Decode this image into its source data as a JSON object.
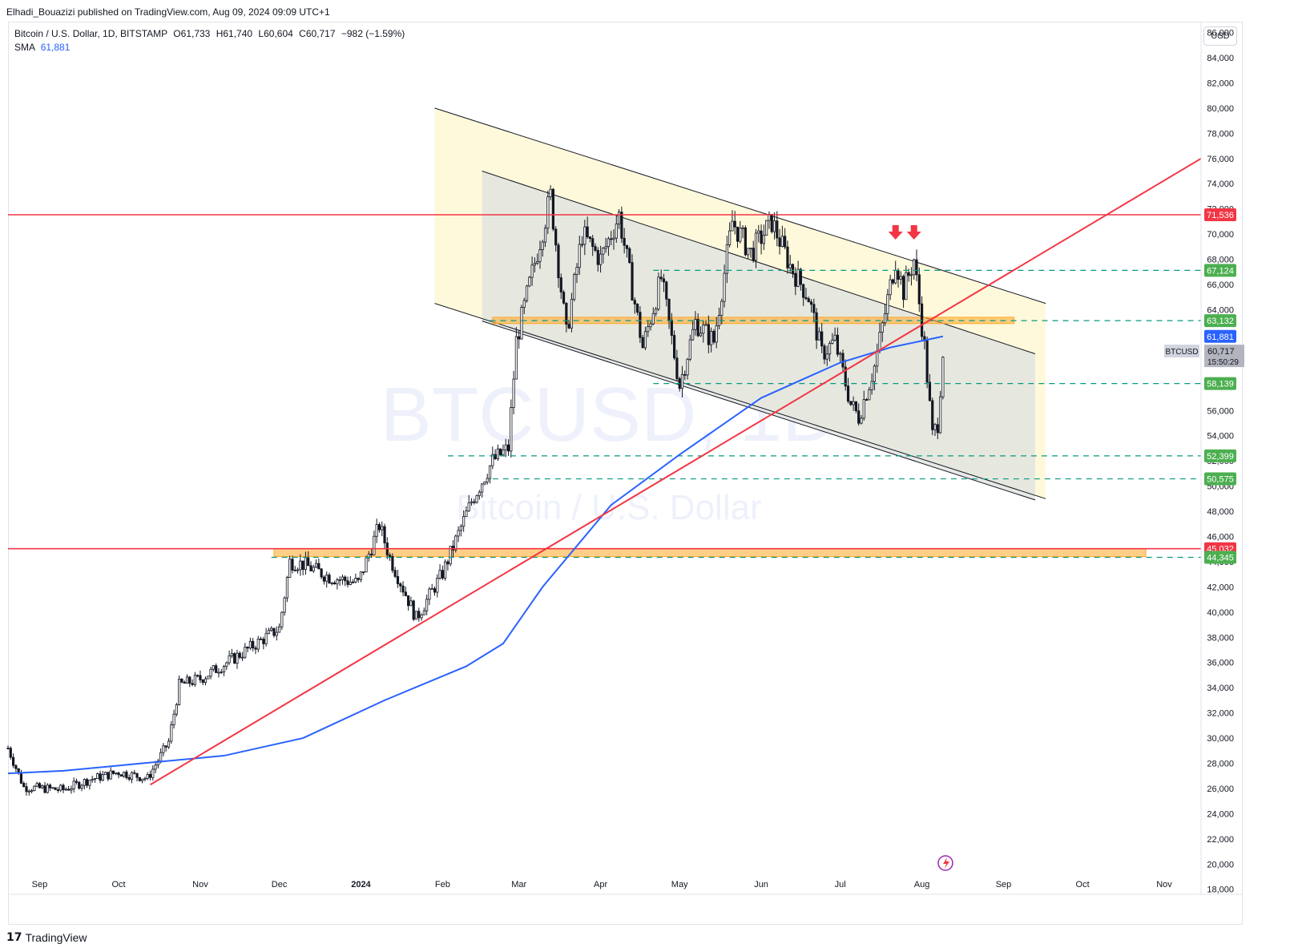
{
  "header": {
    "published_by": "Elhadi_Bouazizi published on TradingView.com, Aug 09, 2024 09:09 UTC+1"
  },
  "legend": {
    "symbol": "Bitcoin / U.S. Dollar, 1D, BITSTAMP",
    "open_label": "O",
    "open": "61,733",
    "high_label": "H",
    "high": "61,740",
    "low_label": "L",
    "low": "60,604",
    "close_label": "C",
    "close": "60,717",
    "change": "−982 (−1.59%)",
    "sma_label": "SMA",
    "sma_value": "61,881"
  },
  "currency_button": "USD",
  "watermark": {
    "ticker": "BTCUSD, 1D",
    "name": "Bitcoin / U.S. Dollar"
  },
  "price_tag": {
    "symbol": "BTCUSD",
    "price": "60,717",
    "countdown": "15:50:29"
  },
  "footer": {
    "brand": "TradingView"
  },
  "colors": {
    "up": "#131722",
    "down": "#131722",
    "sma": "#2962ff",
    "resistance": "#f23645",
    "level": "#089981",
    "channel_outer": "#fff9db",
    "channel_inner": "#e0e3e0",
    "zone": "#ffa726"
  },
  "chart_data": {
    "type": "candlestick",
    "title": "Bitcoin / U.S. Dollar, 1D, BITSTAMP",
    "x_ticks": [
      "Sep",
      "Oct",
      "Nov",
      "Dec",
      "2024",
      "Feb",
      "Mar",
      "Apr",
      "May",
      "Jun",
      "Jul",
      "Aug",
      "Sep",
      "Oct",
      "Nov"
    ],
    "y_ticks": [
      86000,
      84000,
      82000,
      80000,
      78000,
      76000,
      74000,
      72000,
      70000,
      68000,
      66000,
      64000,
      62000,
      60000,
      58000,
      56000,
      54000,
      52000,
      50000,
      48000,
      46000,
      44000,
      42000,
      40000,
      38000,
      36000,
      34000,
      32000,
      30000,
      28000,
      26000,
      24000,
      22000,
      20000,
      18000
    ],
    "ylim": [
      17600,
      86800
    ],
    "date_range": [
      "2023-08-20",
      "2024-11-15"
    ],
    "price_path": [
      [
        "2023-08-20",
        29200
      ],
      [
        "2023-08-26",
        26100
      ],
      [
        "2023-09-10",
        25900
      ],
      [
        "2023-09-20",
        26700
      ],
      [
        "2023-10-01",
        27300
      ],
      [
        "2023-10-12",
        26800
      ],
      [
        "2023-10-20",
        29700
      ],
      [
        "2023-10-24",
        34200
      ],
      [
        "2023-11-01",
        34700
      ],
      [
        "2023-11-15",
        36500
      ],
      [
        "2023-12-01",
        38700
      ],
      [
        "2023-12-05",
        44000
      ],
      [
        "2023-12-10",
        43800
      ],
      [
        "2023-12-20",
        42800
      ],
      [
        "2023-12-31",
        42300
      ],
      [
        "2024-01-08",
        46900
      ],
      [
        "2024-01-12",
        44300
      ],
      [
        "2024-01-22",
        39500
      ],
      [
        "2024-02-01",
        43100
      ],
      [
        "2024-02-12",
        48800
      ],
      [
        "2024-02-20",
        52000
      ],
      [
        "2024-02-26",
        53000
      ],
      [
        "2024-02-29",
        61500
      ],
      [
        "2024-03-05",
        66000
      ],
      [
        "2024-03-13",
        73000
      ],
      [
        "2024-03-19",
        62000
      ],
      [
        "2024-03-25",
        70000
      ],
      [
        "2024-04-01",
        68000
      ],
      [
        "2024-04-08",
        71500
      ],
      [
        "2024-04-17",
        61000
      ],
      [
        "2024-04-24",
        66500
      ],
      [
        "2024-05-01",
        58000
      ],
      [
        "2024-05-07",
        63000
      ],
      [
        "2024-05-14",
        61500
      ],
      [
        "2024-05-21",
        71000
      ],
      [
        "2024-05-28",
        68500
      ],
      [
        "2024-06-05",
        71000
      ],
      [
        "2024-06-12",
        67500
      ],
      [
        "2024-06-19",
        65000
      ],
      [
        "2024-06-24",
        60500
      ],
      [
        "2024-06-29",
        61500
      ],
      [
        "2024-07-05",
        56500
      ],
      [
        "2024-07-08",
        55500
      ],
      [
        "2024-07-14",
        59500
      ],
      [
        "2024-07-22",
        68000
      ],
      [
        "2024-07-25",
        65500
      ],
      [
        "2024-07-29",
        68000
      ],
      [
        "2024-08-02",
        61000
      ],
      [
        "2024-08-05",
        54000
      ],
      [
        "2024-08-07",
        55000
      ],
      [
        "2024-08-09",
        60717
      ]
    ],
    "sma_path": [
      [
        "2023-08-20",
        27200
      ],
      [
        "2023-09-10",
        27400
      ],
      [
        "2023-10-10",
        28000
      ],
      [
        "2023-11-10",
        28600
      ],
      [
        "2023-12-10",
        30000
      ],
      [
        "2024-01-10",
        33000
      ],
      [
        "2024-02-10",
        35700
      ],
      [
        "2024-02-24",
        37500
      ],
      [
        "2024-03-10",
        42000
      ],
      [
        "2024-04-05",
        48500
      ],
      [
        "2024-05-01",
        52500
      ],
      [
        "2024-06-01",
        57000
      ],
      [
        "2024-07-01",
        59800
      ],
      [
        "2024-07-20",
        61000
      ],
      [
        "2024-08-09",
        61881
      ]
    ],
    "trendlines": {
      "rising_support": [
        [
          "2023-10-13",
          26300
        ],
        [
          "2024-11-15",
          76000
        ]
      ],
      "channel_outer_upper": [
        [
          "2024-01-29",
          80000
        ],
        [
          "2024-09-17",
          64500
        ]
      ],
      "channel_outer_lower": [
        [
          "2024-01-29",
          64500
        ],
        [
          "2024-09-17",
          49000
        ]
      ],
      "channel_inner_upper": [
        [
          "2024-02-16",
          75000
        ],
        [
          "2024-09-13",
          60500
        ]
      ],
      "channel_inner_lower": [
        [
          "2024-02-16",
          63100
        ],
        [
          "2024-09-13",
          48900
        ]
      ]
    },
    "levels": [
      {
        "label": "71,536",
        "value": 71536,
        "style": "red",
        "from": "2023-08-20"
      },
      {
        "label": "67,124",
        "value": 67124,
        "style": "green-dashed",
        "from": "2024-04-21"
      },
      {
        "label": "63,132",
        "value": 63132,
        "style": "green-dashed",
        "from": "2024-02-19"
      },
      {
        "label": "61,881",
        "value": 61881,
        "style": "sma"
      },
      {
        "label": "58,139",
        "value": 58139,
        "style": "green-dashed",
        "from": "2024-04-21"
      },
      {
        "label": "52,399",
        "value": 52399,
        "style": "green-dashed",
        "from": "2024-02-03"
      },
      {
        "label": "50,575",
        "value": 50575,
        "style": "green-dashed",
        "from": "2024-02-20"
      },
      {
        "label": "45,032",
        "value": 45032,
        "style": "red",
        "from": "2023-08-20"
      },
      {
        "label": "44,345",
        "value": 44345,
        "style": "green-dashed",
        "from": "2023-11-28"
      }
    ],
    "zones": [
      {
        "from": "2024-02-20",
        "to": "2024-09-05",
        "low": 62900,
        "high": 63400
      },
      {
        "from": "2023-11-29",
        "to": "2024-10-25",
        "low": 44400,
        "high": 45032
      }
    ],
    "markers": [
      {
        "type": "arrow-down",
        "date": "2024-07-22",
        "price": 70200
      },
      {
        "type": "arrow-down",
        "date": "2024-07-29",
        "price": 70200
      }
    ]
  }
}
